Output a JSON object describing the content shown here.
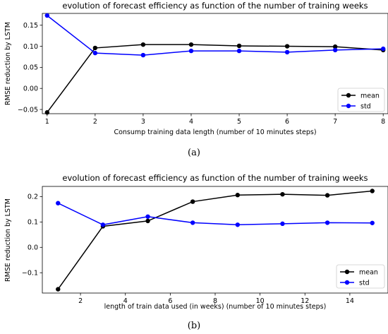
{
  "chart_data": [
    {
      "type": "line",
      "title": "evolution of forecast efficiency as function of the number of training weeks",
      "xlabel": "Consump training data length (number of 10 minutes steps)",
      "ylabel": "RMSE reduction by LSTM",
      "caption": "(a)",
      "x": [
        1,
        2,
        3,
        4,
        5,
        6,
        7,
        8
      ],
      "xticks": [
        1,
        2,
        3,
        4,
        5,
        6,
        7,
        8
      ],
      "yticks": [
        -0.05,
        0.0,
        0.05,
        0.1,
        0.15
      ],
      "ytick_labels": [
        "−0.05",
        "0.00",
        "0.05",
        "0.10",
        "0.15"
      ],
      "xlim": [
        0.9,
        8.1
      ],
      "ylim": [
        -0.06,
        0.178
      ],
      "grid": false,
      "legend_position": "lower-right",
      "series": [
        {
          "name": "mean",
          "color": "#000000",
          "values": [
            -0.057,
            0.096,
            0.104,
            0.104,
            0.101,
            0.1,
            0.099,
            0.091
          ]
        },
        {
          "name": "std",
          "color": "#0000ff",
          "values": [
            0.173,
            0.084,
            0.079,
            0.089,
            0.089,
            0.086,
            0.091,
            0.094
          ]
        }
      ]
    },
    {
      "type": "line",
      "title": "evolution of forecast efficiency as function of the number of training weeks",
      "xlabel": "length of train data used (in weeks) (number of 10 minutes steps)",
      "ylabel": "RMSE reduction by LSTM",
      "caption": "(b)",
      "x": [
        1,
        3,
        5,
        7,
        9,
        11,
        13,
        15
      ],
      "xticks": [
        2,
        4,
        6,
        8,
        10,
        12,
        14
      ],
      "yticks": [
        -0.1,
        0.0,
        0.1,
        0.2
      ],
      "ytick_labels": [
        "−0.1",
        "0.0",
        "0.1",
        "0.2"
      ],
      "xlim": [
        0.3,
        15.7
      ],
      "ylim": [
        -0.18,
        0.24
      ],
      "grid": false,
      "legend_position": "lower-right",
      "series": [
        {
          "name": "mean",
          "color": "#000000",
          "values": [
            -0.165,
            0.083,
            0.104,
            0.18,
            0.206,
            0.209,
            0.205,
            0.222
          ]
        },
        {
          "name": "std",
          "color": "#0000ff",
          "values": [
            0.174,
            0.089,
            0.121,
            0.097,
            0.089,
            0.093,
            0.097,
            0.096
          ]
        }
      ]
    }
  ]
}
